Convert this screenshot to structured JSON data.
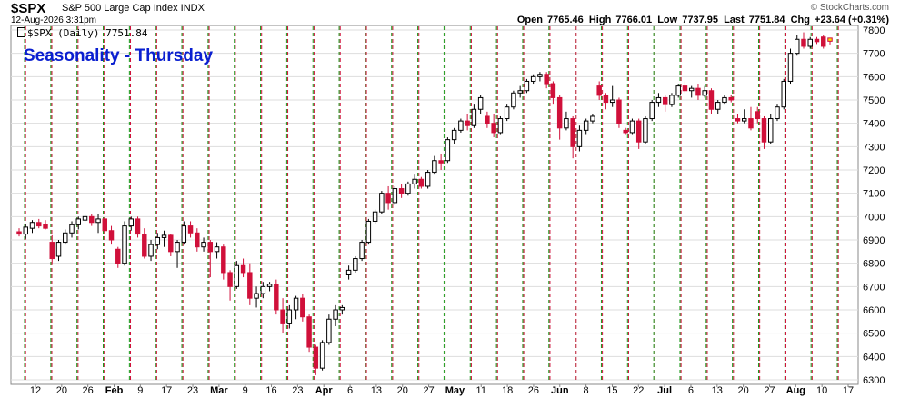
{
  "header": {
    "symbol": "$SPX",
    "description": "S&P 500 Large Cap Index  INDX",
    "timestamp": "12-Aug-2026 3:31pm",
    "watermark": "© StockCharts.com",
    "open_label": "Open",
    "open": "7765.46",
    "high_label": "High",
    "high": "7766.01",
    "low_label": "Low",
    "low": "7737.95",
    "last_label": "Last",
    "last": "7751.84",
    "chg_label": "Chg",
    "chg": "+23.64 (+0.31%)",
    "plot_label": "$SPX (Daily) 7751.84"
  },
  "colors": {
    "up": "#000000",
    "down": "#d0103a",
    "green_line": "#1a9a1a",
    "red_line": "#d0103a",
    "grid": "#dddddd",
    "title": "#0a1fd0"
  },
  "chart_data": {
    "type": "candlestick",
    "title": "Seasonality - Thursday",
    "ylim": [
      6300,
      7800
    ],
    "y_ticks": [
      6300,
      6400,
      6500,
      6600,
      6700,
      6800,
      6900,
      7000,
      7100,
      7200,
      7300,
      7400,
      7500,
      7600,
      7700,
      7800
    ],
    "x_labels": [
      "12",
      "20",
      "26",
      "Feb",
      "9",
      "17",
      "23",
      "Mar",
      "9",
      "16",
      "23",
      "Apr",
      "6",
      "13",
      "20",
      "27",
      "May",
      "11",
      "18",
      "26",
      "Jun",
      "8",
      "15",
      "22",
      "Jul",
      "6",
      "13",
      "20",
      "27",
      "Aug",
      "10",
      "17"
    ],
    "bold_x_labels": [
      "Feb",
      "Mar",
      "Apr",
      "May",
      "Jun",
      "Jul",
      "Aug"
    ],
    "vertical_line_pattern": "green dashed line each Monday, red dashed line each Thursday",
    "candles": [
      [
        6935,
        6950,
        6915,
        6925
      ],
      [
        6925,
        6970,
        6905,
        6955
      ],
      [
        6950,
        6985,
        6930,
        6975
      ],
      [
        6975,
        6990,
        6950,
        6960
      ],
      [
        6965,
        6985,
        6945,
        6950
      ],
      [
        6890,
        6920,
        6800,
        6820
      ],
      [
        6830,
        6900,
        6810,
        6890
      ],
      [
        6890,
        6945,
        6880,
        6930
      ],
      [
        6930,
        6980,
        6910,
        6965
      ],
      [
        6965,
        7000,
        6945,
        6990
      ],
      [
        6985,
        7010,
        6975,
        7000
      ],
      [
        7000,
        7010,
        6960,
        6975
      ],
      [
        6975,
        7010,
        6930,
        6990
      ],
      [
        6990,
        6995,
        6930,
        6940
      ],
      [
        6940,
        6960,
        6880,
        6900
      ],
      [
        6860,
        6870,
        6780,
        6800
      ],
      [
        6800,
        6980,
        6790,
        6960
      ],
      [
        6960,
        7000,
        6940,
        6990
      ],
      [
        6990,
        7000,
        6910,
        6925
      ],
      [
        6925,
        6950,
        6820,
        6830
      ],
      [
        6830,
        6900,
        6810,
        6880
      ],
      [
        6880,
        6930,
        6860,
        6910
      ],
      [
        6910,
        6940,
        6870,
        6920
      ],
      [
        6920,
        6925,
        6830,
        6850
      ],
      [
        6850,
        6900,
        6780,
        6890
      ],
      [
        6890,
        6980,
        6880,
        6960
      ],
      [
        6960,
        6980,
        6910,
        6930
      ],
      [
        6930,
        6950,
        6850,
        6870
      ],
      [
        6870,
        6910,
        6850,
        6890
      ],
      [
        6890,
        6900,
        6740,
        6850
      ],
      [
        6850,
        6890,
        6820,
        6870
      ],
      [
        6870,
        6880,
        6730,
        6760
      ],
      [
        6760,
        6770,
        6640,
        6700
      ],
      [
        6700,
        6810,
        6690,
        6790
      ],
      [
        6790,
        6820,
        6740,
        6760
      ],
      [
        6760,
        6800,
        6620,
        6650
      ],
      [
        6650,
        6700,
        6610,
        6670
      ],
      [
        6670,
        6720,
        6650,
        6700
      ],
      [
        6700,
        6720,
        6680,
        6710
      ],
      [
        6710,
        6730,
        6580,
        6600
      ],
      [
        6600,
        6650,
        6500,
        6540
      ],
      [
        6540,
        6620,
        6520,
        6600
      ],
      [
        6600,
        6660,
        6560,
        6650
      ],
      [
        6650,
        6670,
        6550,
        6570
      ],
      [
        6570,
        6580,
        6420,
        6440
      ],
      [
        6440,
        6450,
        6320,
        6350
      ],
      [
        6350,
        6470,
        6340,
        6460
      ],
      [
        6460,
        6580,
        6450,
        6560
      ],
      [
        6560,
        6620,
        6530,
        6600
      ],
      [
        6600,
        6620,
        6580,
        6610
      ],
      [
        6750,
        6790,
        6730,
        6770
      ],
      [
        6770,
        6830,
        6760,
        6820
      ],
      [
        6820,
        6900,
        6810,
        6890
      ],
      [
        6890,
        6990,
        6880,
        6980
      ],
      [
        6980,
        7030,
        6970,
        7020
      ],
      [
        7020,
        7110,
        7010,
        7100
      ],
      [
        7100,
        7130,
        7030,
        7060
      ],
      [
        7060,
        7130,
        7050,
        7120
      ],
      [
        7120,
        7140,
        7080,
        7100
      ],
      [
        7100,
        7150,
        7090,
        7140
      ],
      [
        7140,
        7180,
        7120,
        7160
      ],
      [
        7160,
        7170,
        7120,
        7130
      ],
      [
        7130,
        7200,
        7120,
        7190
      ],
      [
        7190,
        7260,
        7180,
        7240
      ],
      [
        7240,
        7270,
        7200,
        7230
      ],
      [
        7240,
        7340,
        7230,
        7330
      ],
      [
        7330,
        7380,
        7310,
        7370
      ],
      [
        7370,
        7420,
        7360,
        7410
      ],
      [
        7410,
        7440,
        7370,
        7390
      ],
      [
        7390,
        7480,
        7380,
        7460
      ],
      [
        7460,
        7520,
        7440,
        7510
      ],
      [
        7430,
        7450,
        7380,
        7400
      ],
      [
        7400,
        7440,
        7340,
        7360
      ],
      [
        7360,
        7430,
        7350,
        7420
      ],
      [
        7420,
        7480,
        7410,
        7470
      ],
      [
        7470,
        7540,
        7460,
        7530
      ],
      [
        7530,
        7560,
        7510,
        7540
      ],
      [
        7540,
        7590,
        7530,
        7580
      ],
      [
        7580,
        7610,
        7570,
        7600
      ],
      [
        7600,
        7620,
        7580,
        7610
      ],
      [
        7610,
        7620,
        7550,
        7570
      ],
      [
        7570,
        7580,
        7480,
        7510
      ],
      [
        7510,
        7520,
        7330,
        7380
      ],
      [
        7380,
        7450,
        7370,
        7420
      ],
      [
        7420,
        7430,
        7250,
        7300
      ],
      [
        7300,
        7390,
        7280,
        7370
      ],
      [
        7370,
        7420,
        7350,
        7410
      ],
      [
        7410,
        7440,
        7400,
        7430
      ],
      [
        7560,
        7580,
        7500,
        7520
      ],
      [
        7520,
        7530,
        7460,
        7490
      ],
      [
        7490,
        7560,
        7470,
        7500
      ],
      [
        7500,
        7510,
        7380,
        7400
      ],
      [
        7370,
        7380,
        7350,
        7360
      ],
      [
        7360,
        7420,
        7350,
        7410
      ],
      [
        7410,
        7420,
        7290,
        7320
      ],
      [
        7320,
        7430,
        7310,
        7420
      ],
      [
        7420,
        7500,
        7410,
        7490
      ],
      [
        7490,
        7530,
        7470,
        7510
      ],
      [
        7510,
        7520,
        7450,
        7480
      ],
      [
        7480,
        7530,
        7470,
        7520
      ],
      [
        7520,
        7570,
        7510,
        7560
      ],
      [
        7560,
        7580,
        7530,
        7540
      ],
      [
        7540,
        7560,
        7510,
        7550
      ],
      [
        7550,
        7570,
        7500,
        7520
      ],
      [
        7520,
        7560,
        7510,
        7540
      ],
      [
        7540,
        7550,
        7440,
        7460
      ],
      [
        7460,
        7500,
        7440,
        7490
      ],
      [
        7490,
        7520,
        7480,
        7510
      ],
      [
        7510,
        7520,
        7490,
        7500
      ],
      [
        7420,
        7440,
        7400,
        7410
      ],
      [
        7410,
        7460,
        7400,
        7420
      ],
      [
        7420,
        7470,
        7370,
        7380
      ],
      [
        7450,
        7470,
        7400,
        7420
      ],
      [
        7420,
        7430,
        7290,
        7320
      ],
      [
        7320,
        7440,
        7310,
        7420
      ],
      [
        7420,
        7480,
        7410,
        7470
      ],
      [
        7470,
        7590,
        7460,
        7580
      ],
      [
        7580,
        7720,
        7570,
        7700
      ],
      [
        7700,
        7780,
        7690,
        7760
      ],
      [
        7760,
        7790,
        7720,
        7730
      ],
      [
        7730,
        7770,
        7720,
        7760
      ],
      [
        7760,
        7770,
        7740,
        7750
      ],
      [
        7770,
        7780,
        7720,
        7730
      ],
      [
        7765.46,
        7766.01,
        7737.95,
        7751.84
      ]
    ]
  }
}
